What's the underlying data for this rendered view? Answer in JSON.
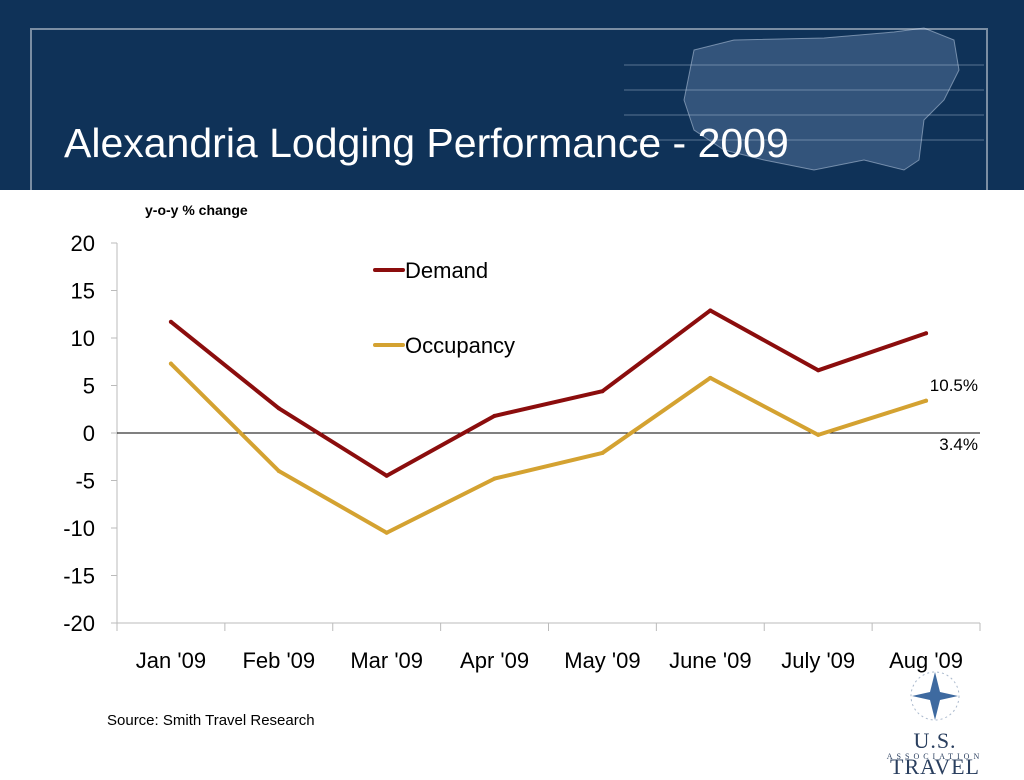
{
  "slide": {
    "title": "Alexandria Lodging Performance - 2009",
    "source": "Source:  Smith Travel Research"
  },
  "logo": {
    "name": "U.S. TRAVEL",
    "sub": "ASSOCIATION"
  },
  "chart_data": {
    "type": "line",
    "ylabel": "y-o-y % change",
    "ylim": [
      -20,
      20
    ],
    "yticks": [
      20,
      15,
      10,
      5,
      0,
      -5,
      -10,
      -15,
      -20
    ],
    "categories": [
      "Jan '09",
      "Feb '09",
      "Mar '09",
      "Apr '09",
      "May '09",
      "June '09",
      "July '09",
      "Aug '09"
    ],
    "series": [
      {
        "name": "Demand",
        "color": "#8b0d0d",
        "values": [
          11.7,
          2.6,
          -4.5,
          1.8,
          4.4,
          12.9,
          6.6,
          10.5
        ]
      },
      {
        "name": "Occupancy",
        "color": "#d4a231",
        "values": [
          7.3,
          -4.0,
          -10.5,
          -4.8,
          -2.1,
          5.8,
          -0.2,
          3.4
        ]
      }
    ],
    "annotations": [
      "10.5%",
      "3.4%"
    ],
    "legend": "top-center",
    "grid": false
  },
  "colors": {
    "banner": "#0f3258",
    "title_text": "#ffffff"
  }
}
